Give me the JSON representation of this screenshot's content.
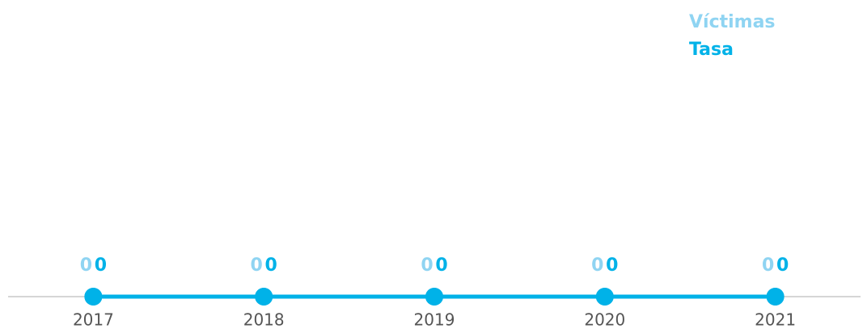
{
  "chart_data": {
    "type": "line",
    "categories": [
      "2017",
      "2018",
      "2019",
      "2020",
      "2021"
    ],
    "series": [
      {
        "name": "Víctimas",
        "color": "#8fd4f2",
        "values": [
          0,
          0,
          0,
          0,
          0
        ]
      },
      {
        "name": "Tasa",
        "color": "#00b2e8",
        "values": [
          0,
          0,
          0,
          0,
          0
        ]
      }
    ],
    "ylim": [
      0,
      1
    ],
    "legend": "top-right"
  }
}
